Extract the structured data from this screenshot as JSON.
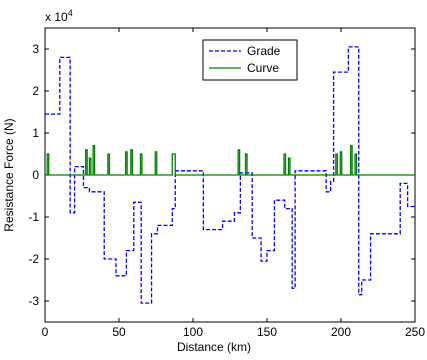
{
  "chart_data": {
    "type": "line",
    "x_label": "Distance (km)",
    "y_label": "Resistance Force (N)",
    "y_multiplier": {
      "base": "x 10",
      "exponent": "4"
    },
    "xlim": [
      0,
      250
    ],
    "xticks": [
      0,
      50,
      100,
      150,
      200,
      250
    ],
    "ylim": [
      -3.5,
      3.5
    ],
    "yticks": [
      -3,
      -2,
      -1,
      0,
      1,
      2,
      3
    ],
    "legend": "top-right",
    "series": [
      {
        "name": "Grade",
        "color": "#0000ff",
        "dash": true,
        "x": [
          0,
          10,
          10,
          17,
          17,
          20,
          20,
          26,
          26,
          30,
          30,
          40,
          40,
          48,
          48,
          55,
          55,
          60,
          60,
          65,
          65,
          72,
          72,
          76,
          76,
          86,
          86,
          88,
          88,
          107,
          107,
          120,
          120,
          128,
          128,
          132,
          132,
          140,
          140,
          146,
          146,
          150,
          150,
          155,
          155,
          162,
          162,
          167,
          167,
          169,
          169,
          190,
          190,
          193,
          193,
          195,
          195,
          205,
          205,
          212,
          212,
          214,
          214,
          220,
          220,
          240,
          240,
          245,
          245,
          250
        ],
        "values": [
          1.45,
          1.45,
          2.8,
          2.8,
          -0.9,
          -0.9,
          0.2,
          0.2,
          -0.3,
          -0.3,
          -0.4,
          -0.4,
          -2.0,
          -2.0,
          -2.4,
          -2.4,
          -1.8,
          -1.8,
          -0.65,
          -0.65,
          -3.05,
          -3.05,
          -1.4,
          -1.4,
          -1.2,
          -1.2,
          -0.8,
          -0.8,
          0.1,
          0.1,
          -1.3,
          -1.3,
          -1.1,
          -1.1,
          -0.9,
          -0.9,
          0.05,
          0.05,
          -1.5,
          -1.5,
          -2.05,
          -2.05,
          -1.8,
          -1.8,
          -0.6,
          -0.6,
          -0.8,
          -0.8,
          -2.7,
          -2.7,
          0.1,
          0.1,
          -0.4,
          -0.4,
          -0.15,
          -0.15,
          2.45,
          2.45,
          3.05,
          3.05,
          -2.85,
          -2.85,
          -2.5,
          -2.5,
          -1.4,
          -1.4,
          -0.2,
          -0.2,
          -0.75,
          -0.75
        ]
      },
      {
        "name": "Curve",
        "color": "#008000",
        "dash": false,
        "x": [
          0,
          1.5,
          1.5,
          2.5,
          2.5,
          27.5,
          27.5,
          28.5,
          28.5,
          30,
          30,
          31,
          31,
          32.5,
          32.5,
          33.5,
          33.5,
          42.5,
          42.5,
          43.5,
          43.5,
          54.5,
          54.5,
          55.5,
          55.5,
          58,
          58,
          59,
          59,
          64.5,
          64.5,
          65.5,
          65.5,
          74.5,
          74.5,
          75.5,
          75.5,
          86,
          86,
          88,
          88,
          130.5,
          130.5,
          131.5,
          131.5,
          135.5,
          135.5,
          136.5,
          136.5,
          161.5,
          161.5,
          162.5,
          162.5,
          164.5,
          164.5,
          165.5,
          165.5,
          196.5,
          196.5,
          197.5,
          197.5,
          199.5,
          199.5,
          200.5,
          200.5,
          206.5,
          206.5,
          207.5,
          207.5,
          209.5,
          209.5,
          210.5,
          210.5,
          250
        ],
        "values": [
          0,
          0,
          0.5,
          0.5,
          0,
          0,
          0.6,
          0.6,
          0,
          0,
          0.4,
          0.4,
          0,
          0,
          0.7,
          0.7,
          0,
          0,
          0.5,
          0.5,
          0,
          0,
          0.55,
          0.55,
          0,
          0,
          0.6,
          0.6,
          0,
          0,
          0.5,
          0.5,
          0,
          0,
          0.55,
          0.55,
          0,
          0,
          0.5,
          0.5,
          0,
          0,
          0.6,
          0.6,
          0,
          0,
          0.5,
          0.5,
          0,
          0,
          0.5,
          0.5,
          0,
          0,
          0.4,
          0.4,
          0,
          0,
          0.5,
          0.5,
          0,
          0,
          0.55,
          0.55,
          0,
          0,
          0.7,
          0.7,
          0,
          0,
          0.5,
          0.5,
          0,
          0
        ]
      }
    ]
  }
}
